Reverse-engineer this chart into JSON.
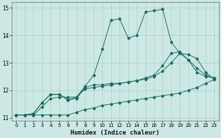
{
  "xlabel": "Humidex (Indice chaleur)",
  "bg_color": "#cce8e5",
  "grid_color": "#aacfcc",
  "line_color": "#1a6b5e",
  "xlim": [
    -0.5,
    23.5
  ],
  "ylim": [
    10.9,
    15.2
  ],
  "yticks": [
    11,
    12,
    13,
    14,
    15
  ],
  "xticks": [
    0,
    1,
    2,
    3,
    4,
    5,
    6,
    7,
    8,
    9,
    10,
    11,
    12,
    13,
    14,
    15,
    16,
    17,
    18,
    19,
    20,
    21,
    22,
    23
  ],
  "s1_x": [
    0,
    1,
    2,
    3,
    4,
    5,
    6,
    7,
    8,
    9,
    10,
    11,
    12,
    13,
    14,
    15,
    16,
    17,
    18,
    19,
    20,
    21,
    22,
    23
  ],
  "s1_y": [
    11.1,
    11.1,
    11.1,
    11.1,
    11.1,
    11.1,
    11.1,
    11.2,
    11.3,
    11.35,
    11.45,
    11.5,
    11.55,
    11.6,
    11.65,
    11.7,
    11.75,
    11.8,
    11.85,
    11.9,
    12.0,
    12.1,
    12.25,
    12.4
  ],
  "s2_x": [
    0,
    1,
    2,
    3,
    4,
    5,
    6,
    7,
    8,
    9,
    10,
    11,
    12,
    13,
    14,
    15,
    16,
    17,
    18,
    19,
    20,
    21,
    22,
    23
  ],
  "s2_y": [
    11.1,
    11.1,
    11.1,
    11.4,
    11.7,
    11.75,
    11.75,
    11.75,
    12.05,
    12.1,
    12.15,
    12.2,
    12.25,
    12.3,
    12.35,
    12.4,
    12.5,
    12.7,
    13.0,
    13.35,
    13.3,
    13.15,
    12.65,
    12.4
  ],
  "s3_x": [
    0,
    1,
    2,
    3,
    4,
    5,
    6,
    7,
    8,
    9,
    10,
    11,
    12,
    13,
    14,
    15,
    16,
    17,
    18,
    19,
    20,
    21,
    22,
    23
  ],
  "s3_y": [
    11.1,
    11.1,
    11.15,
    11.55,
    11.85,
    11.85,
    11.65,
    11.7,
    12.1,
    12.2,
    12.2,
    12.25,
    12.25,
    12.3,
    12.35,
    12.45,
    12.55,
    12.9,
    13.35,
    13.4,
    13.1,
    12.8,
    12.55,
    12.45
  ],
  "s4_x": [
    0,
    1,
    2,
    3,
    4,
    5,
    6,
    7,
    8,
    9,
    10,
    11,
    12,
    13,
    14,
    15,
    16,
    17,
    18,
    19,
    20,
    21,
    22,
    23
  ],
  "s4_y": [
    11.1,
    11.1,
    11.15,
    11.55,
    11.85,
    11.85,
    11.65,
    11.75,
    12.15,
    12.55,
    13.5,
    14.55,
    14.6,
    13.9,
    14.0,
    14.85,
    14.9,
    14.95,
    13.75,
    13.35,
    13.1,
    12.65,
    12.5,
    12.45
  ]
}
